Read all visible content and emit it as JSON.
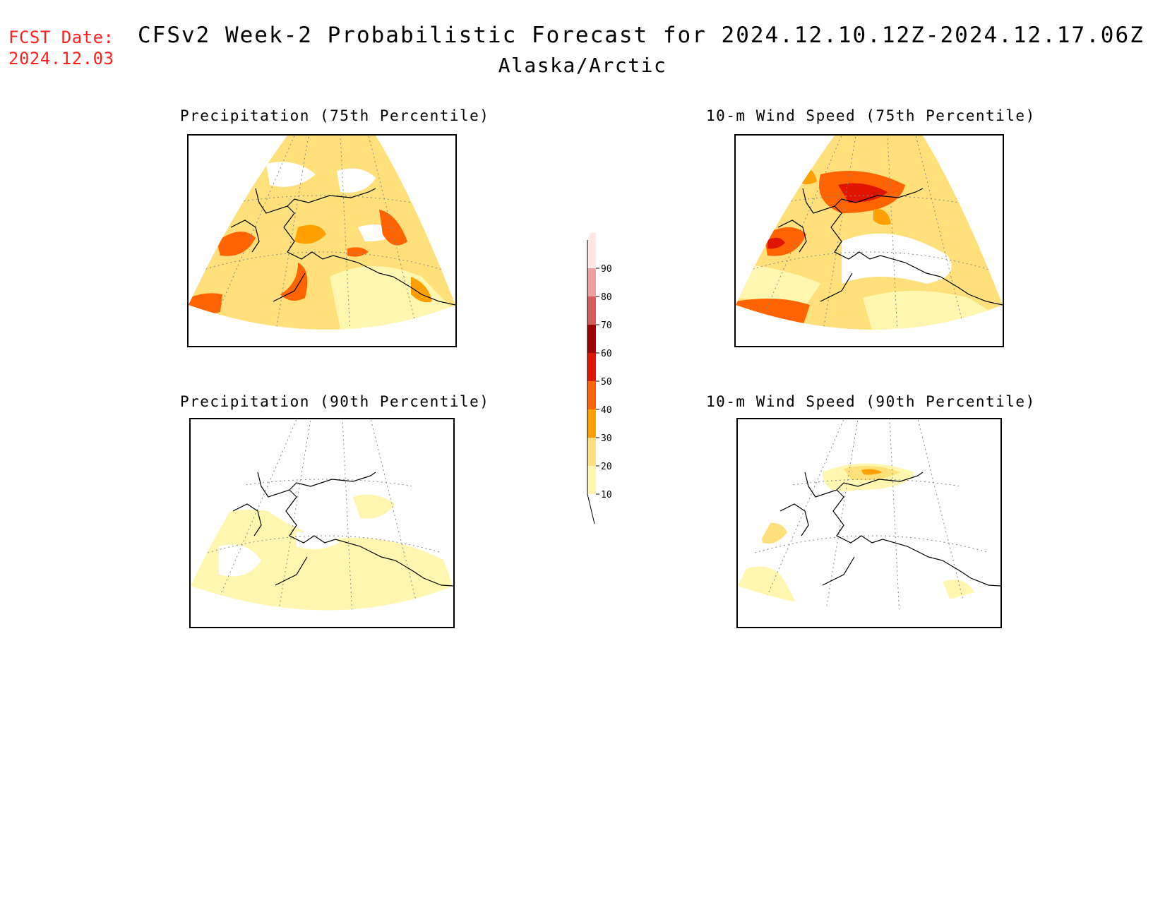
{
  "header": {
    "fcst_label": "FCST Date:",
    "fcst_date": "2024.12.03",
    "title": "CFSv2 Week-2 Probabilistic Forecast for 2024.12.10.12Z-2024.12.17.06Z",
    "region": "Alaska/Arctic"
  },
  "panels": [
    {
      "id": "precip75",
      "title": "Precipitation (75th Percentile)"
    },
    {
      "id": "wind75",
      "title": "10-m Wind Speed (75th Percentile)"
    },
    {
      "id": "precip90",
      "title": "Precipitation (90th Percentile)"
    },
    {
      "id": "wind90",
      "title": "10-m Wind Speed (90th Percentile)"
    }
  ],
  "colors": {
    "fcst_text": "#ff1f1f",
    "c10": "#fff7b0",
    "c20": "#ffe07a",
    "c30": "#ffa000",
    "c40": "#ff6400",
    "c50": "#e01400",
    "c60": "#a00000",
    "c70": "#d85a5a",
    "c80": "#f0a0a0",
    "c90": "#ffe6e6"
  },
  "legend": {
    "levels": [
      "10",
      "20",
      "30",
      "40",
      "50",
      "60",
      "70",
      "80",
      "90"
    ]
  }
}
